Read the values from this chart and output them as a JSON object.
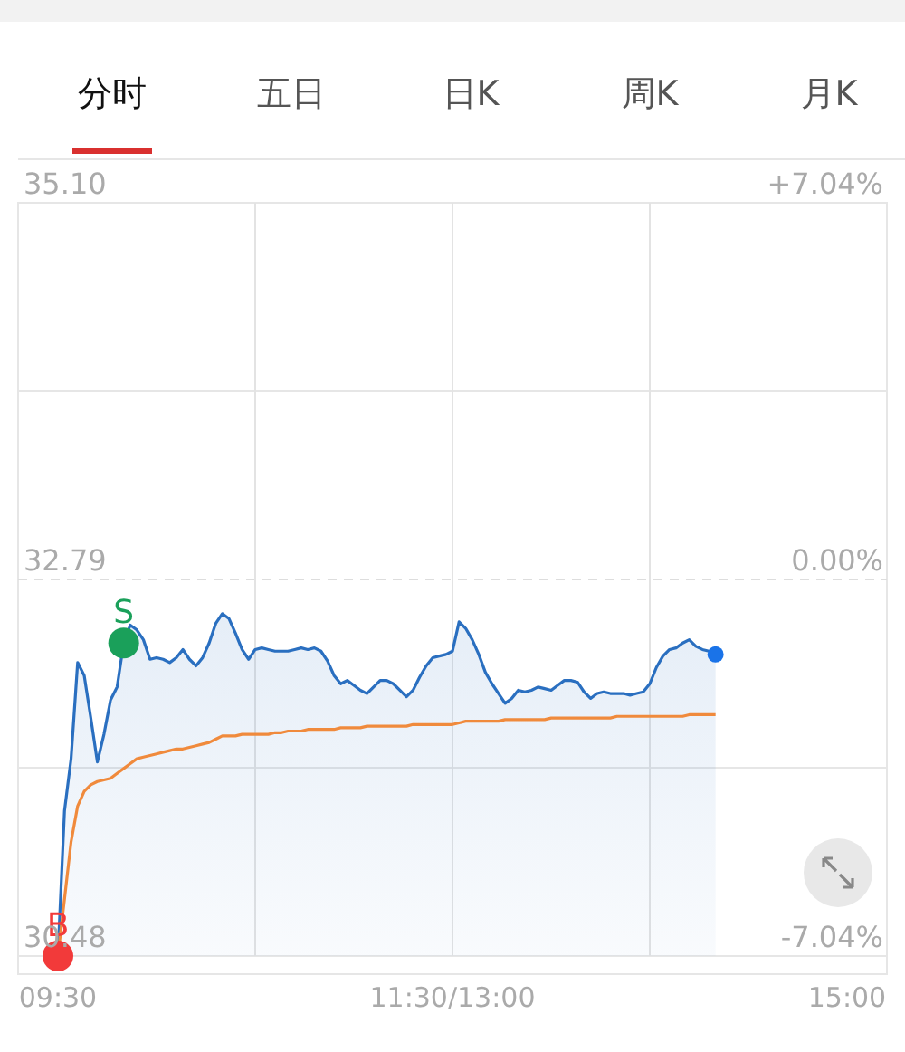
{
  "chart_data": {
    "type": "area",
    "annotations": [
      "分时",
      "五日",
      "日K",
      "周K",
      "月K"
    ],
    "categories": [
      "09:30",
      null,
      null,
      null,
      null,
      null,
      null,
      null,
      null,
      null,
      null,
      null,
      null,
      null,
      null,
      null,
      null,
      null,
      null,
      null,
      null,
      null,
      null,
      null,
      null,
      null,
      null,
      null,
      null,
      null,
      null,
      null,
      null,
      null,
      null,
      null,
      null,
      null,
      null,
      null,
      null,
      null,
      null,
      null,
      null,
      null,
      null,
      null,
      null,
      null,
      null,
      null,
      null,
      null,
      null,
      null,
      null,
      null,
      null,
      null,
      "11:30/13:00",
      null,
      null,
      null,
      null,
      null,
      null,
      null,
      null,
      null,
      null,
      null,
      null,
      null,
      null,
      null,
      null,
      null,
      null,
      null,
      null,
      null,
      null,
      null,
      null,
      null,
      null,
      null,
      null,
      null,
      null,
      null,
      null,
      null,
      null,
      null,
      null,
      null,
      null,
      null,
      null,
      null,
      null,
      null,
      null,
      null,
      null,
      null,
      null,
      null,
      null,
      null,
      null,
      null,
      null,
      null,
      null,
      null,
      null,
      null,
      "15:00"
    ],
    "series": [
      {
        "color": "#2a6fc0",
        "values": [
          30.48,
          31.37,
          31.69,
          32.28,
          32.2,
          31.94,
          31.67,
          31.84,
          32.05,
          32.13,
          32.4,
          32.51,
          32.48,
          32.42,
          32.3,
          32.31,
          32.3,
          32.28,
          32.31,
          32.36,
          32.3,
          32.26,
          32.31,
          32.4,
          32.52,
          32.58,
          32.55,
          32.46,
          32.36,
          32.3,
          32.36,
          32.37,
          32.36,
          32.35,
          32.35,
          32.35,
          32.36,
          32.37,
          32.36,
          32.37,
          32.35,
          32.29,
          32.2,
          32.15,
          32.17,
          32.14,
          32.11,
          32.09,
          32.13,
          32.17,
          32.17,
          32.15,
          32.11,
          32.07,
          32.11,
          32.19,
          32.26,
          32.31,
          32.32,
          32.33,
          32.35,
          32.53,
          32.49,
          32.42,
          32.33,
          32.22,
          32.15,
          32.09,
          32.03,
          32.06,
          32.11,
          32.1,
          32.11,
          32.13,
          32.12,
          32.11,
          32.14,
          32.17,
          32.17,
          32.16,
          32.1,
          32.06,
          32.09,
          32.1,
          32.09,
          32.09,
          32.09,
          32.08,
          32.09,
          32.1,
          32.15,
          32.25,
          32.32,
          32.36,
          32.37,
          32.4,
          32.42,
          32.38,
          32.36,
          32.35,
          32.33,
          null,
          null,
          null,
          null,
          null,
          null,
          null,
          null,
          null,
          null,
          null,
          null,
          null,
          null,
          null,
          null,
          null,
          null,
          null,
          null
        ]
      },
      {
        "type": "line",
        "color": "#f08a3c",
        "values": [
          30.48,
          30.83,
          31.18,
          31.4,
          31.49,
          31.53,
          31.55,
          31.56,
          31.57,
          31.6,
          31.63,
          31.66,
          31.69,
          31.7,
          31.71,
          31.72,
          31.73,
          31.74,
          31.75,
          31.75,
          31.76,
          31.77,
          31.78,
          31.79,
          31.81,
          31.83,
          31.83,
          31.83,
          31.84,
          31.84,
          31.84,
          31.84,
          31.84,
          31.85,
          31.85,
          31.86,
          31.86,
          31.86,
          31.87,
          31.87,
          31.87,
          31.87,
          31.87,
          31.88,
          31.88,
          31.88,
          31.88,
          31.89,
          31.89,
          31.89,
          31.89,
          31.89,
          31.89,
          31.89,
          31.9,
          31.9,
          31.9,
          31.9,
          31.9,
          31.9,
          31.9,
          31.91,
          31.92,
          31.92,
          31.92,
          31.92,
          31.92,
          31.92,
          31.93,
          31.93,
          31.93,
          31.93,
          31.93,
          31.93,
          31.93,
          31.94,
          31.94,
          31.94,
          31.94,
          31.94,
          31.94,
          31.94,
          31.94,
          31.94,
          31.94,
          31.95,
          31.95,
          31.95,
          31.95,
          31.95,
          31.95,
          31.95,
          31.95,
          31.95,
          31.95,
          31.95,
          31.96,
          31.96,
          31.96,
          31.96,
          31.96,
          null,
          null,
          null,
          null,
          null,
          null,
          null,
          null,
          null,
          null,
          null,
          null,
          null,
          null,
          null,
          null,
          null,
          null,
          null,
          null
        ]
      },
      {
        "type": "scatter",
        "name": "B",
        "color": "#f23a3a",
        "values": [
          30.48,
          null,
          null,
          null,
          null,
          null,
          null,
          null,
          null,
          null,
          null,
          null,
          null,
          null,
          null,
          null,
          null,
          null,
          null,
          null,
          null,
          null,
          null,
          null,
          null,
          null,
          null,
          null,
          null,
          null,
          null,
          null,
          null,
          null,
          null,
          null,
          null,
          null,
          null,
          null,
          null,
          null,
          null,
          null,
          null,
          null,
          null,
          null,
          null,
          null,
          null,
          null,
          null,
          null,
          null,
          null,
          null,
          null,
          null,
          null,
          null,
          null,
          null,
          null,
          null,
          null,
          null,
          null,
          null,
          null,
          null,
          null,
          null,
          null,
          null,
          null,
          null,
          null,
          null,
          null,
          null,
          null,
          null,
          null,
          null,
          null,
          null,
          null,
          null,
          null,
          null,
          null,
          null,
          null,
          null,
          null,
          null,
          null,
          null,
          null,
          null,
          null,
          null,
          null,
          null,
          null,
          null,
          null,
          null,
          null,
          null,
          null,
          null,
          null,
          null,
          null,
          null,
          null,
          null,
          null,
          null
        ]
      },
      {
        "type": "scatter",
        "name": "S",
        "color": "#1aa05a",
        "values": [
          null,
          null,
          null,
          null,
          null,
          null,
          null,
          null,
          null,
          null,
          32.4,
          null,
          null,
          null,
          null,
          null,
          null,
          null,
          null,
          null,
          null,
          null,
          null,
          null,
          null,
          null,
          null,
          null,
          null,
          null,
          null,
          null,
          null,
          null,
          null,
          null,
          null,
          null,
          null,
          null,
          null,
          null,
          null,
          null,
          null,
          null,
          null,
          null,
          null,
          null,
          null,
          null,
          null,
          null,
          null,
          null,
          null,
          null,
          null,
          null,
          null,
          null,
          null,
          null,
          null,
          null,
          null,
          null,
          null,
          null,
          null,
          null,
          null,
          null,
          null,
          null,
          null,
          null,
          null,
          null,
          null,
          null,
          null,
          null,
          null,
          null,
          null,
          null,
          null,
          null,
          null,
          null,
          null,
          null,
          null,
          null,
          null,
          null,
          null,
          null,
          null,
          null,
          null,
          null,
          null,
          null,
          null,
          null,
          null,
          null,
          null,
          null,
          null,
          null,
          null,
          null,
          null,
          null,
          null,
          null,
          null
        ]
      },
      {
        "type": "scatter",
        "color": "#1a73e8",
        "values": [
          null,
          null,
          null,
          null,
          null,
          null,
          null,
          null,
          null,
          null,
          null,
          null,
          null,
          null,
          null,
          null,
          null,
          null,
          null,
          null,
          null,
          null,
          null,
          null,
          null,
          null,
          null,
          null,
          null,
          null,
          null,
          null,
          null,
          null,
          null,
          null,
          null,
          null,
          null,
          null,
          null,
          null,
          null,
          null,
          null,
          null,
          null,
          null,
          null,
          null,
          null,
          null,
          null,
          null,
          null,
          null,
          null,
          null,
          null,
          null,
          null,
          null,
          null,
          null,
          null,
          null,
          null,
          null,
          null,
          null,
          null,
          null,
          null,
          null,
          null,
          null,
          null,
          null,
          null,
          null,
          null,
          null,
          null,
          null,
          null,
          null,
          null,
          null,
          null,
          null,
          null,
          null,
          null,
          null,
          null,
          null,
          null,
          null,
          null,
          null,
          32.33,
          null,
          null,
          null,
          null,
          null,
          null,
          null,
          null,
          null,
          null,
          null,
          null,
          null,
          null,
          null,
          null,
          null,
          null,
          null,
          null
        ]
      }
    ],
    "ylim": [
      30.48,
      35.1
    ],
    "yticks": [
      {
        "value": 30.48,
        "label": "30.48"
      },
      {
        "value": 31.635,
        "label": null
      },
      {
        "value": 32.79,
        "label": "32.79"
      },
      {
        "value": 33.945,
        "label": null
      },
      {
        "value": 35.1,
        "label": "35.10"
      }
    ],
    "y2lim": [
      -7.04,
      7.04
    ],
    "y2ticks": [
      {
        "value": -7.04,
        "label": "-7.04%"
      },
      {
        "value": 0,
        "label": "0.00%"
      },
      {
        "value": 7.04,
        "label": "+7.04%"
      }
    ],
    "ref_lines": [
      {
        "axis": "y",
        "value": 32.79,
        "label": null,
        "color": "#dddddd",
        "line_style": "dashed"
      }
    ],
    "grid": true,
    "legend": false
  }
}
